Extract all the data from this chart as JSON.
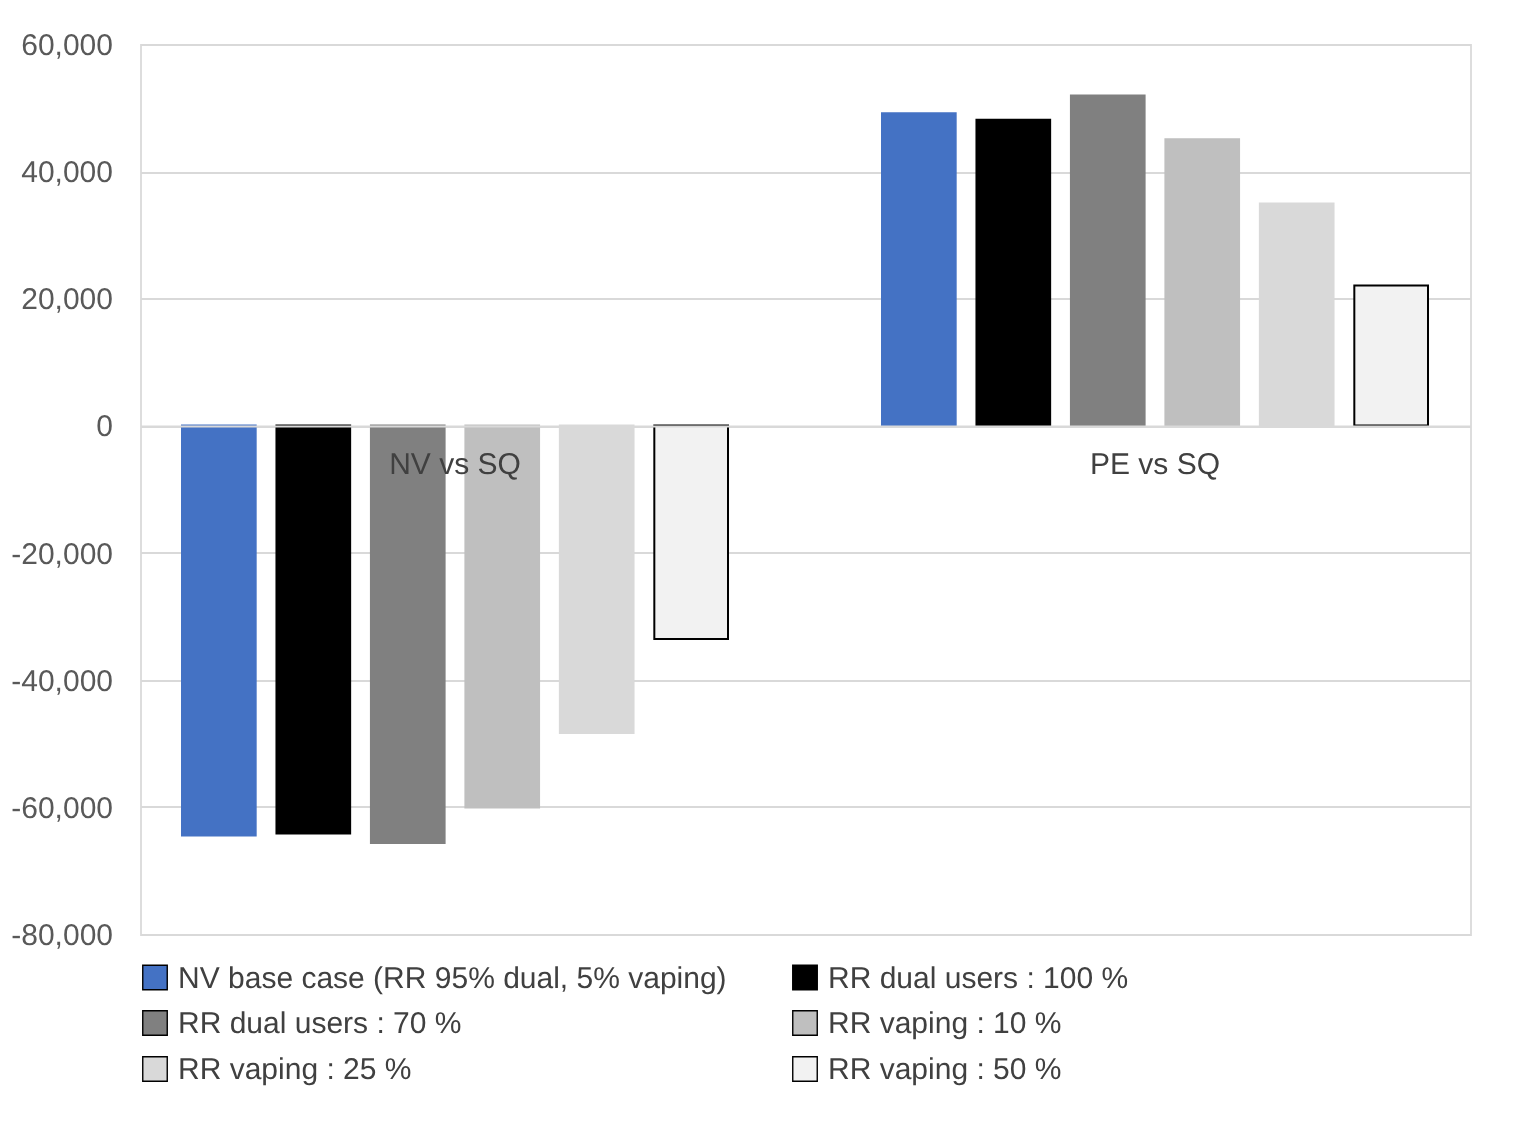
{
  "chart_data": {
    "type": "bar",
    "categories": [
      "NV vs SQ",
      "PE vs SQ"
    ],
    "series": [
      {
        "name": "NV base case (RR 95% dual, 5% vaping)",
        "color": "#4472c4",
        "values": [
          -64500,
          49100
        ]
      },
      {
        "name": "RR dual users : 100 %",
        "color": "#000000",
        "values": [
          -64200,
          48100
        ]
      },
      {
        "name": "RR dual users : 70 %",
        "color": "#808080",
        "values": [
          -65700,
          51900
        ]
      },
      {
        "name": "RR vaping : 10 %",
        "color": "#bfbfbf",
        "values": [
          -60100,
          45000
        ]
      },
      {
        "name": "RR vaping : 25 %",
        "color": "#d9d9d9",
        "values": [
          -48400,
          34900
        ]
      },
      {
        "name": "RR vaping : 50 %",
        "color": "#f2f2f2",
        "values": [
          -33600,
          22000
        ]
      }
    ],
    "ylim": [
      -80000,
      60000
    ],
    "yticks": [
      {
        "value": -80000,
        "label": "-80,000"
      },
      {
        "value": -60000,
        "label": "-60,000"
      },
      {
        "value": -40000,
        "label": "-40,000"
      },
      {
        "value": -20000,
        "label": "-20,000"
      },
      0,
      {
        "value": 20000,
        "label": "20,000"
      },
      {
        "value": 40000,
        "label": "40,000"
      },
      {
        "value": 60000,
        "label": "60,000"
      }
    ],
    "grid": "y",
    "legend": "bottom"
  }
}
